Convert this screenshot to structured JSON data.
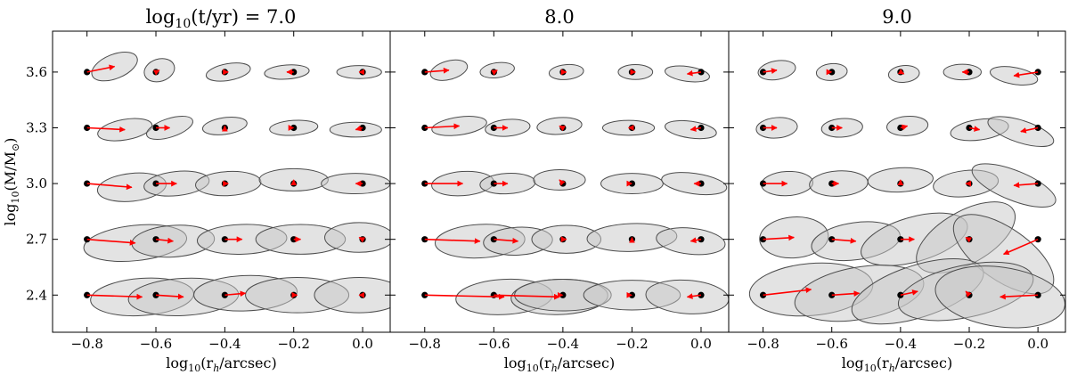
{
  "chart_data": {
    "type": "scatter",
    "description_free": true,
    "colors": {
      "arrow": "#ff0000",
      "point": "#000000",
      "ellipse_fill": "#c8c8c8",
      "ellipse_edge": "#4d4d4d"
    },
    "xlabel_prefix": "log",
    "xlabel_sub": "10",
    "xlabel_body": "(r",
    "xlabel_rsub": "h",
    "xlabel_suffix": "/arcsec)",
    "ylabel_prefix": "log",
    "ylabel_sub": "10",
    "ylabel_body": "(M/M",
    "ylabel_sun": "⊙",
    "ylabel_suffix": ")",
    "x_ticks": [
      -0.8,
      -0.6,
      -0.4,
      -0.2,
      0.0
    ],
    "x_tick_labels": [
      "−0.8",
      "−0.6",
      "−0.4",
      "−0.2",
      "0.0"
    ],
    "y_ticks": [
      2.4,
      2.7,
      3.0,
      3.3,
      3.6
    ],
    "y_tick_labels": [
      "2.4",
      "2.7",
      "3.0",
      "3.3",
      "3.6"
    ],
    "xlim": [
      -0.9,
      0.08
    ],
    "ylim": [
      2.2,
      3.82
    ],
    "title_prefix_log": "log",
    "title_prefix_sub": "10",
    "title_prefix_body": "(t/yr) = ",
    "truth_x": [
      -0.8,
      -0.6,
      -0.4,
      -0.2,
      0.0
    ],
    "truth_y": [
      3.6,
      3.3,
      3.0,
      2.7,
      2.4
    ],
    "panels": [
      {
        "title": "7.0",
        "title_has_prefix": true,
        "rows": [
          {
            "y": 3.6,
            "est": [
              [
                -0.72,
                3.63
              ],
              [
                -0.59,
                3.61
              ],
              [
                -0.39,
                3.6
              ],
              [
                -0.22,
                3.6
              ],
              [
                -0.01,
                3.6
              ]
            ],
            "ell": [
              [
                0.07,
                0.065,
                -22
              ],
              [
                0.045,
                0.06,
                -18
              ],
              [
                0.065,
                0.045,
                -10
              ],
              [
                0.065,
                0.038,
                -4
              ],
              [
                0.065,
                0.035,
                0
              ]
            ]
          },
          {
            "y": 3.3,
            "est": [
              [
                -0.69,
                3.29
              ],
              [
                -0.56,
                3.3
              ],
              [
                -0.4,
                3.31
              ],
              [
                -0.2,
                3.3
              ],
              [
                -0.02,
                3.29
              ]
            ],
            "ell": [
              [
                0.08,
                0.055,
                -10
              ],
              [
                0.07,
                0.05,
                -18
              ],
              [
                0.065,
                0.045,
                -8
              ],
              [
                0.07,
                0.04,
                -4
              ],
              [
                0.075,
                0.04,
                0
              ]
            ]
          },
          {
            "y": 3.0,
            "est": [
              [
                -0.67,
                2.98
              ],
              [
                -0.54,
                3.0
              ],
              [
                -0.39,
                3.0
              ],
              [
                -0.2,
                3.02
              ],
              [
                -0.02,
                3.0
              ]
            ],
            "ell": [
              [
                0.1,
                0.075,
                -6
              ],
              [
                0.095,
                0.065,
                -6
              ],
              [
                0.095,
                0.065,
                -3
              ],
              [
                0.1,
                0.06,
                0
              ],
              [
                0.1,
                0.055,
                0
              ]
            ]
          },
          {
            "y": 2.7,
            "est": [
              [
                -0.66,
                2.68
              ],
              [
                -0.55,
                2.69
              ],
              [
                -0.35,
                2.7
              ],
              [
                -0.18,
                2.7
              ],
              [
                -0.01,
                2.71
              ]
            ],
            "ell": [
              [
                0.15,
                0.095,
                -6
              ],
              [
                0.12,
                0.085,
                -4
              ],
              [
                0.13,
                0.08,
                -2
              ],
              [
                0.13,
                0.08,
                0
              ],
              [
                0.1,
                0.08,
                0
              ]
            ]
          },
          {
            "y": 2.4,
            "est": [
              [
                -0.64,
                2.39
              ],
              [
                -0.52,
                2.39
              ],
              [
                -0.34,
                2.41
              ],
              [
                -0.19,
                2.4
              ],
              [
                -0.01,
                2.4
              ]
            ],
            "ell": [
              [
                0.15,
                0.1,
                -4
              ],
              [
                0.16,
                0.1,
                -3
              ],
              [
                0.15,
                0.095,
                -2
              ],
              [
                0.15,
                0.095,
                0
              ],
              [
                0.13,
                0.095,
                0
              ]
            ]
          }
        ]
      },
      {
        "title": "8.0",
        "title_has_prefix": false,
        "rows": [
          {
            "y": 3.6,
            "est": [
              [
                -0.73,
                3.61
              ],
              [
                -0.59,
                3.61
              ],
              [
                -0.39,
                3.6
              ],
              [
                -0.19,
                3.6
              ],
              [
                -0.04,
                3.59
              ]
            ],
            "ell": [
              [
                0.055,
                0.05,
                -15
              ],
              [
                0.05,
                0.04,
                -8
              ],
              [
                0.05,
                0.04,
                -5
              ],
              [
                0.05,
                0.04,
                0
              ],
              [
                0.065,
                0.04,
                8
              ]
            ]
          },
          {
            "y": 3.3,
            "est": [
              [
                -0.7,
                3.31
              ],
              [
                -0.56,
                3.3
              ],
              [
                -0.41,
                3.31
              ],
              [
                -0.21,
                3.3
              ],
              [
                -0.03,
                3.29
              ]
            ],
            "ell": [
              [
                0.08,
                0.048,
                -8
              ],
              [
                0.065,
                0.045,
                -5
              ],
              [
                0.065,
                0.045,
                -4
              ],
              [
                0.075,
                0.04,
                0
              ],
              [
                0.075,
                0.045,
                8
              ]
            ]
          },
          {
            "y": 3.0,
            "est": [
              [
                -0.69,
                3.0
              ],
              [
                -0.56,
                3.0
              ],
              [
                -0.41,
                3.02
              ],
              [
                -0.2,
                3.0
              ],
              [
                -0.02,
                3.0
              ]
            ],
            "ell": [
              [
                0.09,
                0.065,
                -4
              ],
              [
                0.08,
                0.055,
                -3
              ],
              [
                0.075,
                0.055,
                0
              ],
              [
                0.09,
                0.055,
                0
              ],
              [
                0.095,
                0.055,
                8
              ]
            ]
          },
          {
            "y": 2.7,
            "est": [
              [
                -0.64,
                2.69
              ],
              [
                -0.53,
                2.69
              ],
              [
                -0.39,
                2.7
              ],
              [
                -0.2,
                2.71
              ],
              [
                -0.03,
                2.69
              ]
            ],
            "ell": [
              [
                0.13,
                0.09,
                -3
              ],
              [
                0.1,
                0.075,
                -3
              ],
              [
                0.1,
                0.075,
                0
              ],
              [
                0.13,
                0.075,
                -2
              ],
              [
                0.1,
                0.07,
                6
              ]
            ]
          },
          {
            "y": 2.4,
            "est": [
              [
                -0.57,
                2.39
              ],
              [
                -0.41,
                2.39
              ],
              [
                -0.4,
                2.4
              ],
              [
                -0.2,
                2.4
              ],
              [
                -0.04,
                2.39
              ]
            ],
            "ell": [
              [
                0.14,
                0.095,
                -3
              ],
              [
                0.14,
                0.095,
                -2
              ],
              [
                0.14,
                0.085,
                0
              ],
              [
                0.14,
                0.08,
                0
              ],
              [
                0.12,
                0.09,
                4
              ]
            ]
          }
        ]
      },
      {
        "title": "9.0",
        "title_has_prefix": false,
        "rows": [
          {
            "y": 3.6,
            "est": [
              [
                -0.76,
                3.61
              ],
              [
                -0.6,
                3.6
              ],
              [
                -0.39,
                3.59
              ],
              [
                -0.22,
                3.6
              ],
              [
                -0.07,
                3.58
              ]
            ],
            "ell": [
              [
                0.055,
                0.05,
                -10
              ],
              [
                0.045,
                0.045,
                -5
              ],
              [
                0.045,
                0.045,
                -5
              ],
              [
                0.055,
                0.042,
                0
              ],
              [
                0.07,
                0.045,
                10
              ]
            ]
          },
          {
            "y": 3.3,
            "est": [
              [
                -0.76,
                3.3
              ],
              [
                -0.57,
                3.3
              ],
              [
                -0.38,
                3.31
              ],
              [
                -0.17,
                3.29
              ],
              [
                -0.05,
                3.28
              ]
            ],
            "ell": [
              [
                0.06,
                0.055,
                -5
              ],
              [
                0.06,
                0.05,
                -4
              ],
              [
                0.06,
                0.052,
                -4
              ],
              [
                0.085,
                0.055,
                -8
              ],
              [
                0.1,
                0.06,
                18
              ]
            ]
          },
          {
            "y": 3.0,
            "est": [
              [
                -0.73,
                3.0
              ],
              [
                -0.58,
                3.0
              ],
              [
                -0.4,
                3.02
              ],
              [
                -0.21,
                3.0
              ],
              [
                -0.07,
                2.99
              ]
            ],
            "ell": [
              [
                0.075,
                0.065,
                -3
              ],
              [
                0.085,
                0.068,
                -3
              ],
              [
                0.095,
                0.065,
                -3
              ],
              [
                0.095,
                0.07,
                -6
              ],
              [
                0.13,
                0.08,
                22
              ]
            ]
          },
          {
            "y": 2.7,
            "est": [
              [
                -0.71,
                2.71
              ],
              [
                -0.53,
                2.69
              ],
              [
                -0.36,
                2.7
              ],
              [
                -0.21,
                2.71
              ],
              [
                -0.1,
                2.62
              ]
            ],
            "ell": [
              [
                0.1,
                0.11,
                -4
              ],
              [
                0.13,
                0.1,
                -8
              ],
              [
                0.16,
                0.12,
                -16
              ],
              [
                0.16,
                0.14,
                -30
              ],
              [
                0.17,
                0.14,
                35
              ]
            ]
          },
          {
            "y": 2.4,
            "est": [
              [
                -0.66,
                2.43
              ],
              [
                -0.52,
                2.41
              ],
              [
                -0.35,
                2.42
              ],
              [
                -0.21,
                2.42
              ],
              [
                -0.11,
                2.39
              ]
            ],
            "ell": [
              [
                0.18,
                0.14,
                -5
              ],
              [
                0.19,
                0.14,
                -10
              ],
              [
                0.2,
                0.14,
                -18
              ],
              [
                0.2,
                0.14,
                -12
              ],
              [
                0.19,
                0.16,
                8
              ]
            ]
          }
        ]
      }
    ]
  }
}
